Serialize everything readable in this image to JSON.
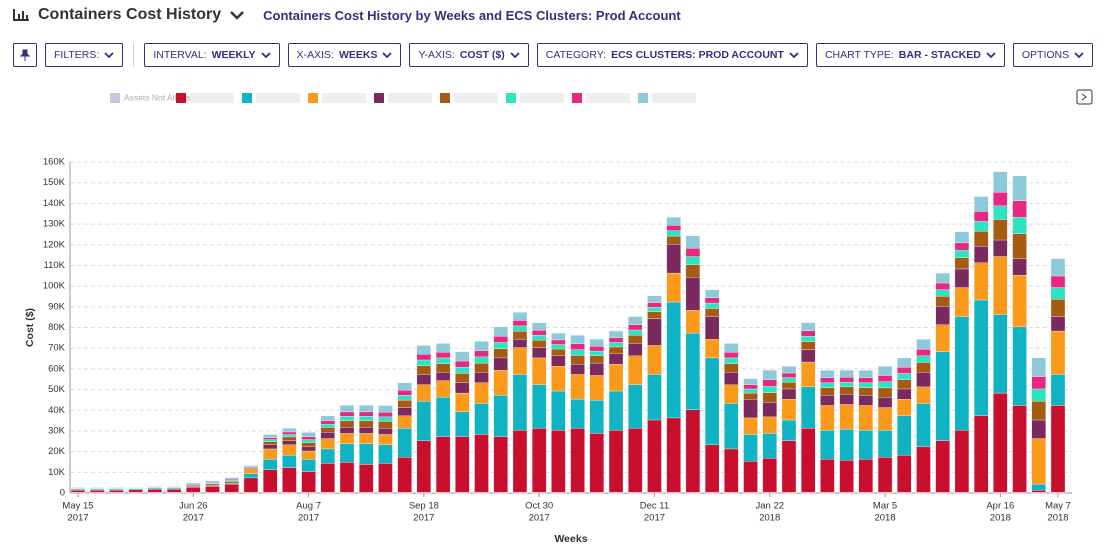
{
  "header": {
    "title": "Containers Cost History",
    "subtitle": "Containers Cost History by Weeks and ECS Clusters: Prod Account"
  },
  "toolbar": [
    {
      "label": "FILTERS:"
    },
    {
      "label": "INTERVAL:",
      "value": "WEEKLY"
    },
    {
      "label": "X-AXIS:",
      "value": "WEEKS"
    },
    {
      "label": "Y-AXIS:",
      "value": "COST ($)"
    },
    {
      "label": "CATEGORY:",
      "value": "ECS CLUSTERS: PROD ACCOUNT"
    },
    {
      "label": "CHART TYPE:",
      "value": "BAR - STACKED"
    },
    {
      "label": "OPTIONS"
    }
  ],
  "chart_data": {
    "type": "stacked_bar",
    "x_label": "Weeks",
    "y_label": "Cost ($)",
    "categories": [
      "May 15",
      null,
      null,
      null,
      null,
      null,
      "Jun 26",
      null,
      null,
      null,
      null,
      null,
      "Aug 7",
      null,
      null,
      null,
      null,
      null,
      "Sep 18",
      null,
      null,
      null,
      null,
      null,
      "Oct 30",
      null,
      null,
      null,
      null,
      null,
      "Dec 11",
      null,
      null,
      null,
      null,
      null,
      "Jan 22",
      null,
      null,
      null,
      null,
      null,
      "Mar 5",
      null,
      null,
      null,
      null,
      null,
      "Apr 16",
      null,
      null,
      "May 7"
    ],
    "category_years": [
      "2017",
      null,
      null,
      null,
      null,
      null,
      "2017",
      null,
      null,
      null,
      null,
      null,
      "2017",
      null,
      null,
      null,
      null,
      null,
      "2017",
      null,
      null,
      null,
      null,
      null,
      "2017",
      null,
      null,
      null,
      null,
      null,
      "2017",
      null,
      null,
      null,
      null,
      null,
      "2018",
      null,
      null,
      null,
      null,
      null,
      "2018",
      null,
      null,
      null,
      null,
      null,
      "2018",
      null,
      null,
      "2018"
    ],
    "ylim": [
      0,
      160000
    ],
    "yticks": [
      0,
      {
        "value": 10000,
        "label": "10K"
      },
      {
        "value": 20000,
        "label": "20K"
      },
      {
        "value": 30000,
        "label": "30K"
      },
      {
        "value": 40000,
        "label": "40K"
      },
      {
        "value": 50000,
        "label": "50K"
      },
      {
        "value": 60000,
        "label": "60K"
      },
      {
        "value": 70000,
        "label": "70K"
      },
      {
        "value": 80000,
        "label": "80K"
      },
      {
        "value": 90000,
        "label": "90K"
      },
      {
        "value": 100000,
        "label": "100K"
      },
      {
        "value": 110000,
        "label": "110K"
      },
      {
        "value": 120000,
        "label": "120K"
      },
      {
        "value": 130000,
        "label": "130K"
      },
      {
        "value": 140000,
        "label": "140K"
      },
      {
        "value": 150000,
        "label": "150K"
      },
      {
        "value": 160000,
        "label": "160K"
      }
    ],
    "grid": true,
    "value_scale": 1000,
    "series": [
      {
        "name": "Assets Not Allocated",
        "color": "#c9c3dd",
        "values": [
          0.3,
          0.3,
          0.3,
          0.3,
          0.3,
          0.3,
          0.3,
          0.3,
          0.3,
          0.3,
          0.3,
          0.3,
          0.3,
          0.3,
          0.3,
          0.3,
          0.3,
          0.3,
          0.3,
          0.3,
          0.3,
          0.3,
          0.3,
          0.3,
          0.3,
          0.3,
          0.3,
          0.3,
          0.3,
          0.3,
          0.3,
          0.3,
          0.3,
          0.3,
          0.3,
          0.3,
          0.3,
          0.3,
          0.3,
          0.3,
          0.3,
          0.3,
          0.3,
          0.3,
          0.3,
          0.3,
          0.3,
          0.3,
          0.3,
          0.3,
          0.3,
          0.3
        ]
      },
      {
        "color": "#c8102e",
        "values": [
          1,
          1,
          1,
          1.2,
          1.5,
          1.5,
          2.5,
          3,
          4,
          7,
          11,
          12,
          10,
          14,
          14.5,
          13.5,
          14,
          17,
          25,
          27,
          27,
          28,
          27,
          30,
          31,
          30,
          31,
          28.5,
          30,
          31,
          35,
          36,
          40,
          23,
          21,
          15,
          16.5,
          25,
          31,
          16,
          15.5,
          16,
          17,
          18,
          22,
          25,
          30,
          37,
          48,
          42,
          1,
          42
        ]
      },
      {
        "color": "#0fb3c4",
        "values": [
          0.5,
          0.5,
          0.5,
          0.5,
          0.5,
          0.5,
          0.5,
          0.5,
          0.5,
          2,
          5,
          6,
          6,
          7,
          9,
          10,
          9,
          14,
          19,
          19,
          12,
          15,
          20,
          27,
          21,
          19,
          14,
          16,
          19,
          21,
          22,
          56,
          37,
          42,
          22,
          13,
          12,
          10,
          20,
          14,
          15,
          14,
          13,
          19,
          21,
          43,
          55,
          56,
          38,
          38,
          3,
          15
        ]
      },
      {
        "color": "#fb9a1a",
        "values": [
          0,
          0,
          0,
          0,
          0,
          0,
          0,
          0,
          0,
          2,
          5,
          5,
          4,
          5,
          5,
          5,
          5,
          6,
          8,
          8,
          9,
          10,
          12,
          13,
          13,
          12,
          12,
          12,
          13,
          14,
          14,
          14,
          11,
          9,
          9,
          8,
          8,
          10,
          12,
          12,
          12,
          12,
          11,
          8,
          8,
          13,
          14,
          18,
          28,
          25,
          22,
          21
        ]
      },
      {
        "color": "#7a2a5e",
        "values": [
          0,
          0,
          0,
          0,
          0,
          0,
          0,
          0,
          0,
          0,
          2,
          2,
          2,
          3,
          3,
          3,
          3,
          4,
          5,
          4,
          5,
          5,
          6,
          4,
          5,
          5,
          5,
          6,
          5,
          6,
          13,
          14,
          16,
          11,
          6,
          9,
          7,
          5,
          6,
          5,
          5,
          5,
          5,
          5,
          7,
          9,
          9,
          8,
          8,
          8,
          9,
          7
        ]
      },
      {
        "color": "#a65a12",
        "values": [
          0.3,
          0.3,
          0.3,
          0.2,
          0.3,
          0.3,
          0.5,
          0.6,
          0.8,
          0.6,
          1.5,
          1.8,
          2.1,
          2.4,
          3.2,
          3.2,
          3.3,
          3.6,
          4.2,
          4.2,
          4.5,
          4.5,
          4.5,
          3.9,
          3.6,
          3.3,
          4.2,
          3.5,
          3.3,
          3.9,
          3.3,
          3.9,
          6,
          3.9,
          4.2,
          3,
          4.7,
          3.3,
          3.9,
          3.6,
          3.5,
          3.6,
          4.5,
          4.5,
          4.8,
          4.8,
          5.4,
          7.2,
          9.9,
          12,
          9,
          8.4
        ]
      },
      {
        "color": "#2de3c2",
        "values": [
          0.2,
          0.2,
          0.2,
          0.2,
          0.2,
          0.2,
          0.3,
          0.4,
          0.5,
          0.4,
          1,
          1.2,
          1.4,
          1.6,
          2.1,
          2.1,
          2.2,
          2.4,
          2.8,
          2.8,
          3,
          3,
          3,
          2.6,
          2.4,
          2.2,
          2.8,
          2.3,
          2.2,
          2.6,
          2.2,
          2.6,
          4,
          2.6,
          2.8,
          2,
          3.1,
          2.2,
          2.6,
          2.4,
          2.3,
          2.4,
          3,
          3,
          3.2,
          3.2,
          3.6,
          4.8,
          6.6,
          8,
          6,
          5.6
        ]
      },
      {
        "color": "#e8287e",
        "values": [
          0.2,
          0.2,
          0.2,
          0.2,
          0.2,
          0.2,
          0.3,
          0.4,
          0.5,
          0.4,
          1,
          1.2,
          1.4,
          1.6,
          2.1,
          2.1,
          2.2,
          2.4,
          2.8,
          2.8,
          3,
          3,
          3,
          2.6,
          2.4,
          2.2,
          2.8,
          2.3,
          2.2,
          2.6,
          2.2,
          2.6,
          4,
          2.6,
          2.8,
          2,
          3.1,
          2.2,
          2.6,
          2.4,
          2.3,
          2.4,
          3,
          3,
          3.2,
          3.2,
          3.6,
          4.8,
          6.6,
          8,
          6,
          5.6
        ]
      },
      {
        "color": "#8ec9da",
        "values": [
          0.3,
          0.3,
          0.3,
          0.2,
          0.3,
          0.3,
          0.5,
          0.6,
          0.8,
          0.6,
          1.5,
          1.8,
          2.1,
          2.4,
          3.2,
          3.2,
          3.3,
          3.6,
          4.2,
          4.2,
          4.5,
          4.5,
          4.5,
          3.9,
          3.6,
          3.3,
          4.2,
          3.5,
          3.3,
          3.9,
          3.3,
          3.9,
          6,
          3.9,
          4.2,
          3,
          4.7,
          3.3,
          3.9,
          3.6,
          3.5,
          3.6,
          4.5,
          4.5,
          4.8,
          4.8,
          5.4,
          7.2,
          9.9,
          12,
          9,
          8.4
        ]
      }
    ]
  }
}
